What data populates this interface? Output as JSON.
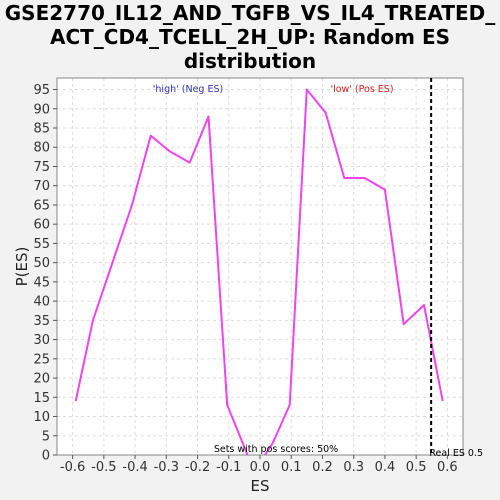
{
  "chart_data": {
    "type": "line",
    "title_lines": [
      "GSE2770_IL12_AND_TGFB_VS_IL4_TREATED_",
      "ACT_CD4_TCELL_2H_UP: Random ES",
      "distribution"
    ],
    "xlabel": "ES",
    "ylabel": "P(ES)",
    "xlim": [
      -0.65,
      0.65
    ],
    "ylim": [
      0,
      98
    ],
    "x_ticks": [
      -0.6,
      -0.5,
      -0.4,
      -0.3,
      -0.2,
      -0.1,
      0.0,
      0.1,
      0.2,
      0.3,
      0.4,
      0.5,
      0.6
    ],
    "x_tick_labels": [
      "-0.6",
      "-0.5",
      "-0.4",
      "-0.3",
      "-0.2",
      "-0.1",
      "0.0",
      "0.1",
      "0.2",
      "0.3",
      "0.4",
      "0.5",
      "0.6"
    ],
    "y_ticks": [
      0,
      5,
      10,
      15,
      20,
      25,
      30,
      35,
      40,
      45,
      50,
      55,
      60,
      65,
      70,
      75,
      80,
      85,
      90,
      95
    ],
    "grid": true,
    "series": [
      {
        "color": "#ee44ee",
        "x": [
          -0.59,
          -0.535,
          -0.41,
          -0.35,
          -0.29,
          -0.225,
          -0.165,
          -0.105,
          -0.06,
          -0.03,
          0.0,
          0.04,
          0.095,
          0.15,
          0.21,
          0.27,
          0.335,
          0.4,
          0.46,
          0.525,
          0.585
        ],
        "y": [
          14,
          35,
          65,
          83,
          79,
          76,
          88,
          13,
          4,
          -2,
          -2,
          3,
          13,
          95,
          89,
          72,
          72,
          69,
          34,
          39,
          14
        ]
      }
    ],
    "real_es": {
      "x": 0.548,
      "label": "Real ES 0.5",
      "color": "#000000"
    },
    "annotations": {
      "high": {
        "text": "'high' (Neg ES)",
        "color": "#3333aa"
      },
      "low": {
        "text": "'low' (Pos ES)",
        "color": "#cc2222"
      },
      "sets": {
        "text": "Sets with pos scores: 50%",
        "color": "#000000"
      }
    }
  }
}
